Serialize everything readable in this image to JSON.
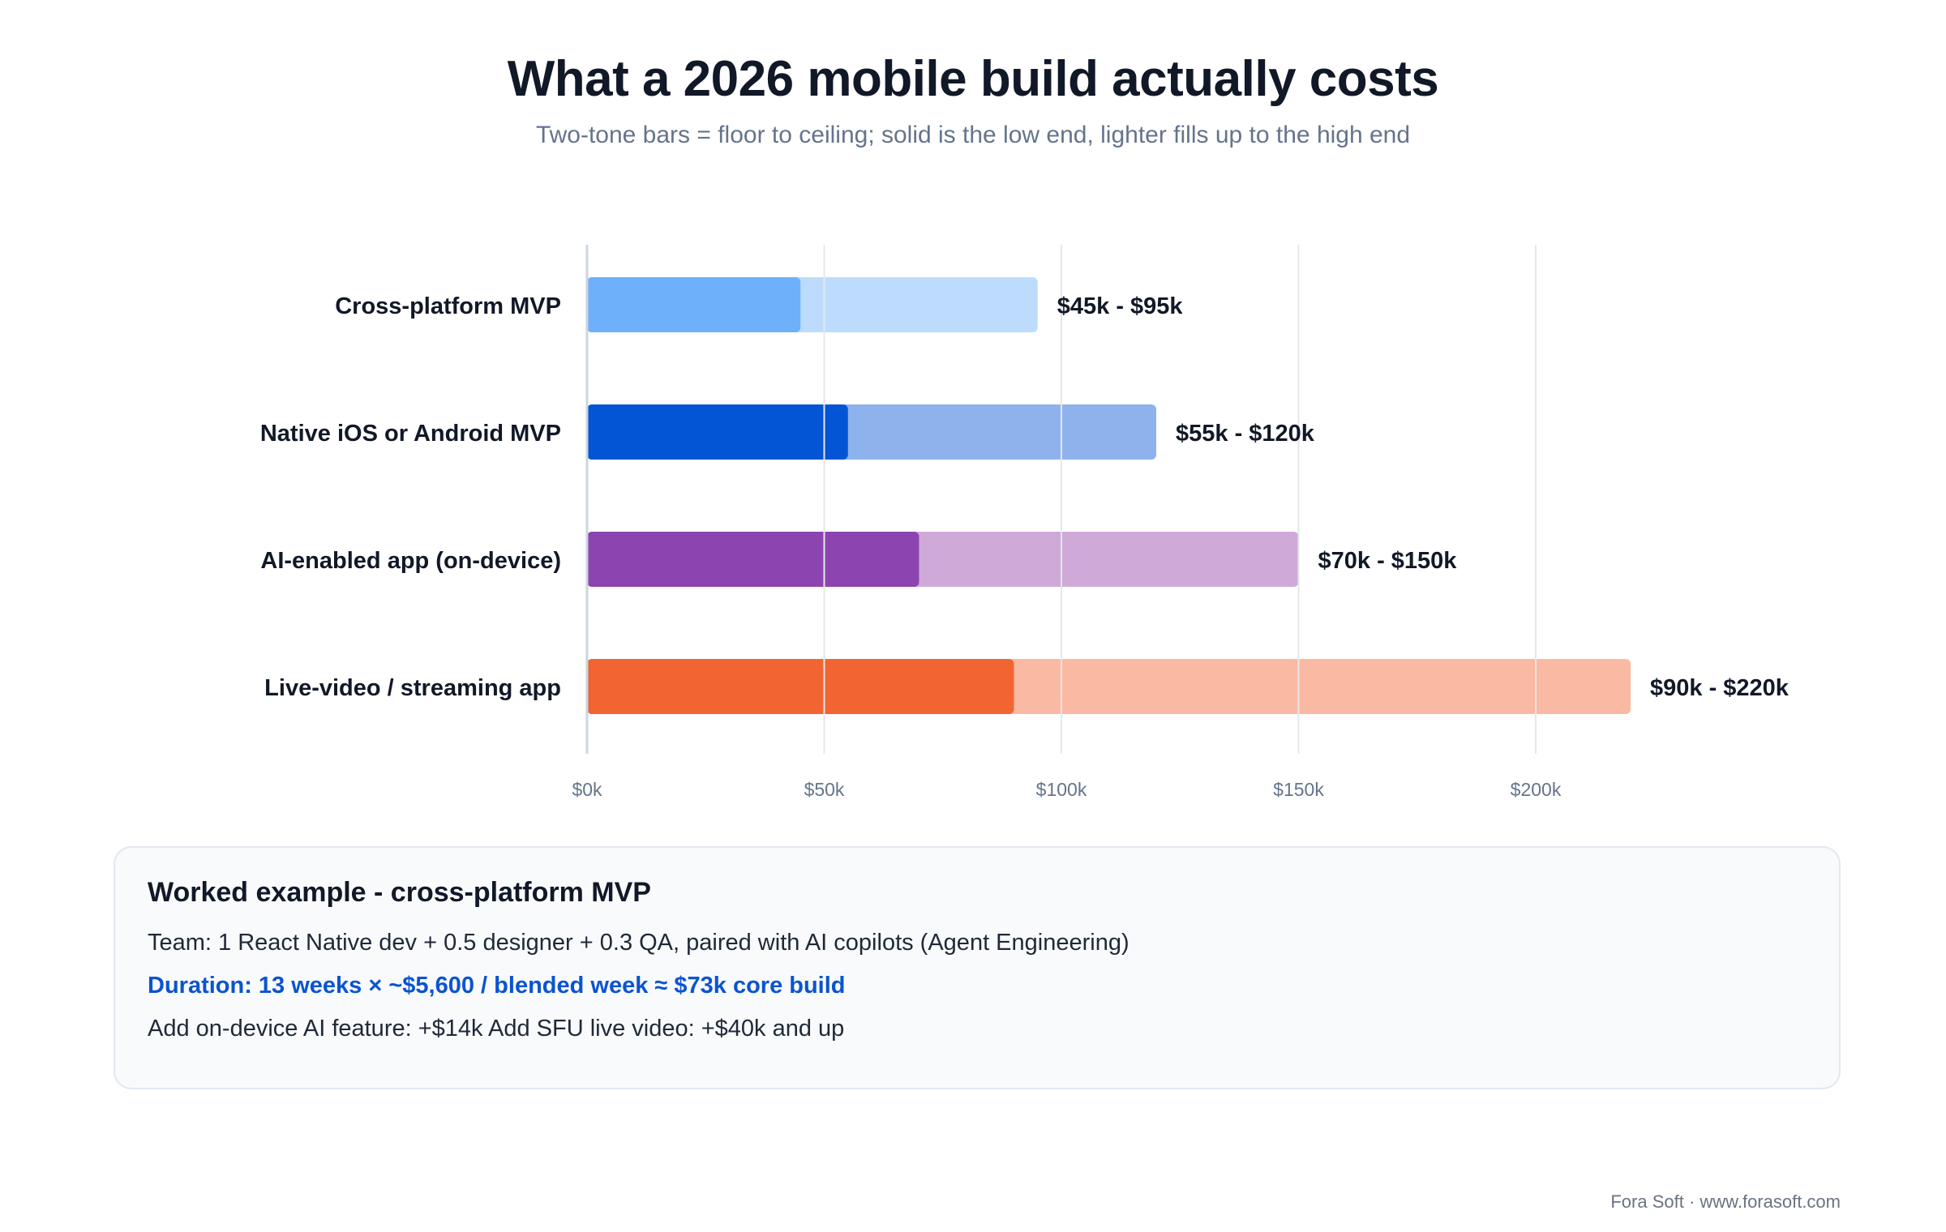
{
  "header": {
    "title": "What a 2026 mobile build actually costs",
    "subtitle": "Two-tone bars = floor to ceiling; solid is the low end, lighter fills up to the high end"
  },
  "chart_data": {
    "type": "bar",
    "orientation": "horizontal",
    "style": "floating range (low end solid, high end lighter)",
    "categories": [
      "Cross-platform MVP",
      "Native iOS or Android MVP",
      "AI-enabled app (on-device)",
      "Live-video / streaming app"
    ],
    "low": [
      45,
      55,
      70,
      90
    ],
    "high": [
      95,
      120,
      150,
      220
    ],
    "value_labels": [
      "$45k - $95k",
      "$55k - $120k",
      "$70k - $150k",
      "$90k - $220k"
    ],
    "colors_solid": [
      "#6eb0fa",
      "#0454d6",
      "#8c45b0",
      "#f26533"
    ],
    "colors_light": [
      "#bddcfd",
      "#8db2ec",
      "#cfaad9",
      "#fab9a2"
    ],
    "xlim": [
      0,
      220
    ],
    "xticks": [
      0,
      50,
      100,
      150,
      200
    ],
    "xtick_labels": [
      "$0k",
      "$50k",
      "$100k",
      "$150k",
      "$200k"
    ],
    "grid": "vertical",
    "legend": "none"
  },
  "example": {
    "title": "Worked example - cross-platform MVP",
    "team": "Team: 1 React Native dev + 0.5 designer + 0.3 QA, paired with AI copilots (Agent Engineering)",
    "duration": "Duration: 13 weeks × ~$5,600 / blended week ≈ $73k core build",
    "addons": "Add on-device AI feature: +$14k Add SFU live video: +$40k and up"
  },
  "footer": {
    "credit": "Fora Soft · www.forasoft.com"
  }
}
